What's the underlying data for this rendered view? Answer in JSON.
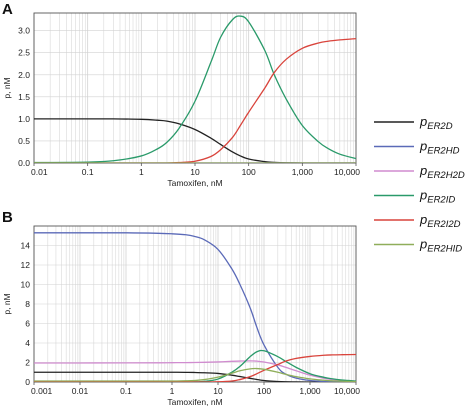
{
  "colors": {
    "pER2D": "#222222",
    "pER2HD": "#5b6ab8",
    "pER2H2D": "#d08ccf",
    "pER2ID": "#2a9a6a",
    "pER2I2D": "#d9443c",
    "pER2HID": "#8fae5a",
    "grid": "#d2d2d2",
    "axis": "#555555"
  },
  "legend": [
    {
      "key": "pER2D",
      "p": "p",
      "sub": "ER2D"
    },
    {
      "key": "pER2HD",
      "p": "p",
      "sub": "ER2HD"
    },
    {
      "key": "pER2H2D",
      "p": "p",
      "sub": "ER2H2D"
    },
    {
      "key": "pER2ID",
      "p": "p",
      "sub": "ER2ID"
    },
    {
      "key": "pER2I2D",
      "p": "p",
      "sub": "ER2I2D"
    },
    {
      "key": "pER2HID",
      "p": "p",
      "sub": "ER2HID"
    }
  ],
  "chart_data": [
    {
      "panel": "A",
      "type": "line",
      "xscale": "log",
      "xlim": [
        0.01,
        10000
      ],
      "ylim": [
        0,
        3.4
      ],
      "xticks": [
        0.01,
        0.1,
        1,
        10,
        100,
        1000,
        10000
      ],
      "xtick_labels": [
        "0.01",
        "0.1",
        "1",
        "10",
        "100",
        "1,000",
        "10,000"
      ],
      "yticks": [
        0,
        0.5,
        1.0,
        1.5,
        2.0,
        2.5,
        3.0
      ],
      "ytick_labels": [
        "0.0",
        "0.5",
        "1.0",
        "1.5",
        "2.0",
        "2.5",
        "3.0"
      ],
      "xlabel": "Tamoxifen, nM",
      "ylabel": "p, nM",
      "grid": true,
      "x": [
        0.01,
        0.1,
        0.3,
        1,
        2,
        3,
        5,
        10,
        20,
        30,
        50,
        70,
        100,
        200,
        300,
        500,
        1000,
        2000,
        3000,
        5000,
        10000
      ],
      "series": [
        {
          "key": "pER2D",
          "values": [
            1.0,
            1.0,
            1.0,
            0.99,
            0.97,
            0.95,
            0.89,
            0.76,
            0.56,
            0.42,
            0.25,
            0.16,
            0.09,
            0.03,
            0.015,
            0.005,
            0,
            0,
            0,
            0,
            0
          ]
        },
        {
          "key": "pER2HD",
          "values": [
            0,
            0,
            0,
            0,
            0,
            0,
            0,
            0,
            0,
            0,
            0,
            0,
            0,
            0,
            0,
            0,
            0,
            0,
            0,
            0,
            0
          ]
        },
        {
          "key": "pER2H2D",
          "values": [
            0,
            0,
            0,
            0,
            0,
            0,
            0,
            0,
            0,
            0,
            0,
            0,
            0,
            0,
            0,
            0,
            0,
            0,
            0,
            0,
            0
          ]
        },
        {
          "key": "pER2ID",
          "values": [
            0.01,
            0.02,
            0.05,
            0.16,
            0.32,
            0.47,
            0.78,
            1.4,
            2.3,
            2.85,
            3.25,
            3.33,
            3.2,
            2.55,
            2.0,
            1.45,
            0.85,
            0.48,
            0.33,
            0.2,
            0.1
          ]
        },
        {
          "key": "pER2I2D",
          "values": [
            0,
            0,
            0,
            0,
            0,
            0,
            0.01,
            0.04,
            0.15,
            0.3,
            0.58,
            0.85,
            1.15,
            1.7,
            2.05,
            2.35,
            2.6,
            2.72,
            2.76,
            2.79,
            2.82
          ]
        },
        {
          "key": "pER2HID",
          "values": [
            0,
            0,
            0,
            0,
            0,
            0,
            0,
            0,
            0,
            0,
            0,
            0,
            0,
            0,
            0,
            0,
            0,
            0,
            0,
            0,
            0
          ]
        }
      ]
    },
    {
      "panel": "B",
      "type": "line",
      "xscale": "log",
      "xlim": [
        0.001,
        10000
      ],
      "ylim": [
        0,
        16
      ],
      "xticks": [
        0.001,
        0.01,
        0.1,
        1,
        10,
        100,
        1000,
        10000
      ],
      "xtick_labels": [
        "0.001",
        "0.01",
        "0.1",
        "1",
        "10",
        "100",
        "1,000",
        "10,000"
      ],
      "yticks": [
        0,
        2,
        4,
        6,
        8,
        10,
        12,
        14
      ],
      "ytick_labels": [
        "0",
        "2",
        "4",
        "6",
        "8",
        "10",
        "12",
        "14"
      ],
      "xlabel": "Tamoxifen, nM",
      "ylabel": "p, nM",
      "grid": true,
      "x": [
        0.001,
        0.01,
        0.1,
        0.5,
        1,
        2,
        3,
        5,
        10,
        20,
        30,
        50,
        70,
        100,
        200,
        300,
        500,
        1000,
        2000,
        3000,
        5000,
        10000
      ],
      "series": [
        {
          "key": "pER2D",
          "values": [
            1.0,
            1.0,
            1.0,
            1.0,
            1.0,
            0.99,
            0.98,
            0.95,
            0.88,
            0.7,
            0.56,
            0.38,
            0.26,
            0.15,
            0.05,
            0.02,
            0.01,
            0,
            0,
            0,
            0,
            0
          ]
        },
        {
          "key": "pER2HD",
          "values": [
            15.3,
            15.3,
            15.3,
            15.25,
            15.2,
            15.1,
            14.95,
            14.6,
            13.6,
            11.6,
            10.0,
            7.6,
            5.6,
            3.8,
            1.5,
            0.8,
            0.4,
            0.15,
            0.05,
            0.02,
            0.01,
            0
          ]
        },
        {
          "key": "pER2H2D",
          "values": [
            1.95,
            1.95,
            1.96,
            1.97,
            1.98,
            1.99,
            2.0,
            2.02,
            2.06,
            2.12,
            2.15,
            2.17,
            2.14,
            2.05,
            1.75,
            1.5,
            1.15,
            0.7,
            0.38,
            0.26,
            0.16,
            0.08
          ]
        },
        {
          "key": "pER2ID",
          "values": [
            0.0,
            0.0,
            0.0,
            0.0,
            0.0,
            0.01,
            0.02,
            0.06,
            0.3,
            1.0,
            1.6,
            2.6,
            3.1,
            3.2,
            2.6,
            2.1,
            1.5,
            0.85,
            0.48,
            0.33,
            0.2,
            0.1
          ]
        },
        {
          "key": "pER2I2D",
          "values": [
            0,
            0,
            0,
            0,
            0,
            0,
            0,
            0,
            0.02,
            0.1,
            0.25,
            0.55,
            0.85,
            1.2,
            1.8,
            2.15,
            2.42,
            2.62,
            2.74,
            2.78,
            2.8,
            2.82
          ]
        },
        {
          "key": "pER2HID",
          "values": [
            0.1,
            0.1,
            0.1,
            0.1,
            0.1,
            0.12,
            0.15,
            0.25,
            0.5,
            0.9,
            1.15,
            1.35,
            1.38,
            1.3,
            1.0,
            0.78,
            0.55,
            0.32,
            0.18,
            0.12,
            0.08,
            0.04
          ]
        }
      ]
    }
  ]
}
